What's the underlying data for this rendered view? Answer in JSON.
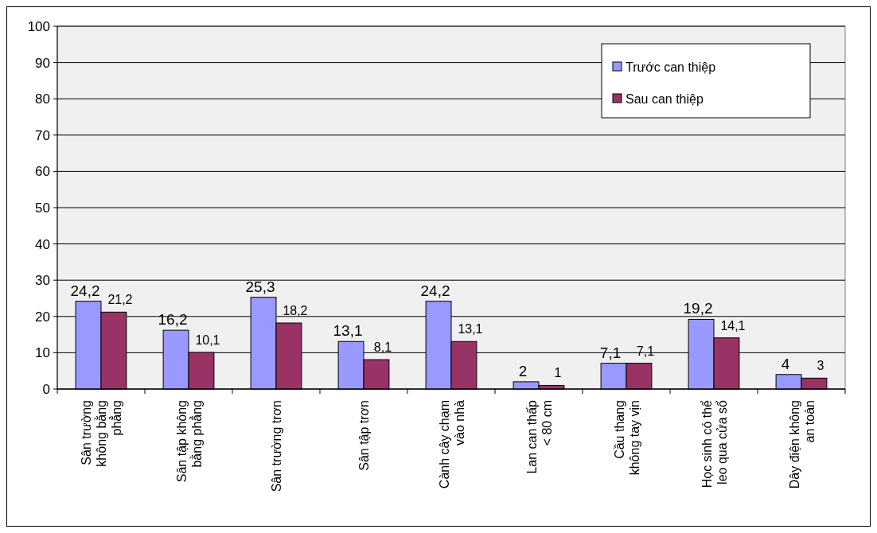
{
  "chart_data": {
    "type": "bar",
    "categories": [
      "Sân trường\nkhông bằng\nphẳng",
      "Sân tập không\nbằng phẳng",
      "Sân trường trơn",
      "Sân tập trơn",
      "Cành cây chạm\nvào nhà",
      "Lan can thấp\n< 80 cm",
      "Cầu thang\nkhông tay vịn",
      "Học sinh có thể\nleo qua cửa sổ",
      "Dây điện không\nan toàn"
    ],
    "series": [
      {
        "name": "Trước can thiệp",
        "color": "#9999ff",
        "values": [
          24.2,
          16.2,
          25.3,
          13.1,
          24.2,
          2,
          7.1,
          19.2,
          4
        ],
        "value_labels": [
          "24,2",
          "16,2",
          "25,3",
          "13,1",
          "24,2",
          "2",
          "7,1",
          "19,2",
          "4"
        ]
      },
      {
        "name": "Sau can thiệp",
        "color": "#993366",
        "values": [
          21.2,
          10.1,
          18.2,
          8.1,
          13.1,
          1,
          7.1,
          14.1,
          3
        ],
        "value_labels": [
          "21,2",
          "10,1",
          "18,2",
          "8,1",
          "13,1",
          "1",
          "7,1",
          "14,1",
          "3"
        ]
      }
    ],
    "ylim": [
      0,
      100
    ],
    "yticks": [
      0,
      10,
      20,
      30,
      40,
      50,
      60,
      70,
      80,
      90,
      100
    ],
    "grid": "y",
    "legend": "top right"
  }
}
